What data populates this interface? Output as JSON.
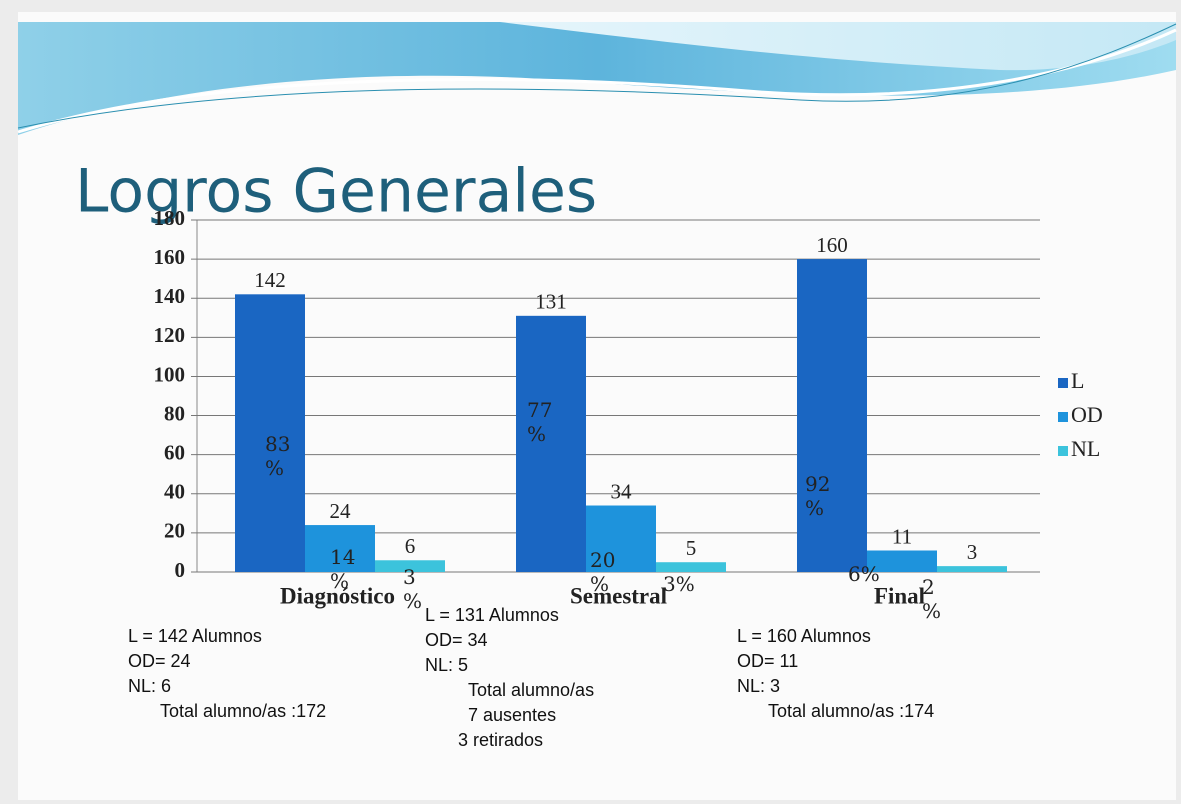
{
  "chart_data": {
    "type": "bar",
    "title": "Logros Generales",
    "categories": [
      "Diagnóstico",
      "Semestral",
      "Final"
    ],
    "series": [
      {
        "name": "L",
        "color": "#1a66c2",
        "values": [
          142,
          131,
          160
        ],
        "pct_labels": [
          "83 %",
          "77 %",
          "92 %"
        ]
      },
      {
        "name": "OD",
        "color": "#1e93dc",
        "values": [
          24,
          34,
          11
        ],
        "pct_labels": [
          "14%",
          "20 %",
          "6%"
        ]
      },
      {
        "name": "NL",
        "color": "#3cc3dc",
        "values": [
          6,
          5,
          3
        ],
        "pct_labels": [
          "3 %",
          "3%",
          "2 %"
        ]
      }
    ],
    "ylim": [
      0,
      180
    ],
    "yticks": [
      0,
      20,
      40,
      60,
      80,
      100,
      120,
      140,
      160,
      180
    ],
    "grid": true,
    "legend": "right",
    "notes": [
      [
        "L = 142 Alumnos",
        "OD= 24",
        "NL: 6",
        "Total alumno/as :172"
      ],
      [
        "L = 131 Alumnos",
        "OD= 34",
        "NL: 5",
        "Total alumno/as",
        "7 ausentes",
        "3 retirados"
      ],
      [
        "L = 160 Alumnos",
        "OD= 11",
        "NL: 3",
        "Total alumno/as :174"
      ]
    ]
  }
}
